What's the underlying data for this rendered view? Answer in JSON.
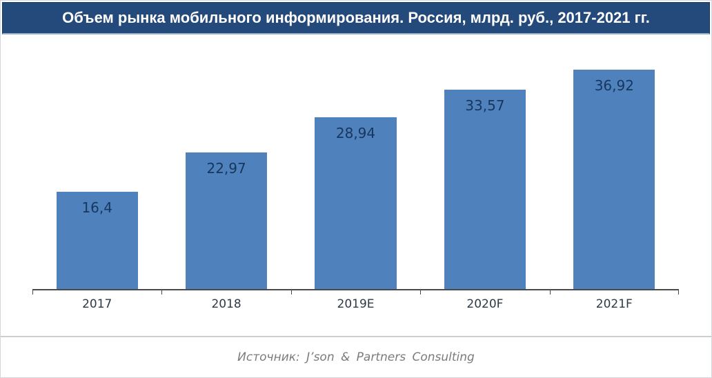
{
  "chart_data": {
    "type": "bar",
    "title": "Объем рынка мобильного информирования. Россия, млрд. руб., 2017-2021 гг.",
    "categories": [
      "2017",
      "2018",
      "2019E",
      "2020F",
      "2021F"
    ],
    "values": [
      16.4,
      22.97,
      28.94,
      33.57,
      36.92
    ],
    "value_labels": [
      "16,4",
      "22,97",
      "28,94",
      "33,57",
      "36,92"
    ],
    "xlabel": "",
    "ylabel": "",
    "ylim": [
      0,
      43
    ],
    "grid": false,
    "legend": false,
    "bar_color": "#4F81BD",
    "value_label_color": "#17365D",
    "axis_color": "#4a4a4a"
  },
  "footer": {
    "source": "Источник: J’son & Partners Consulting"
  },
  "colors": {
    "title_bg": "#24497B",
    "title_text": "#FFFFFF",
    "bar": "#4F81BD",
    "divider": "#C6C6C6",
    "source_text": "#7B7B7B"
  }
}
